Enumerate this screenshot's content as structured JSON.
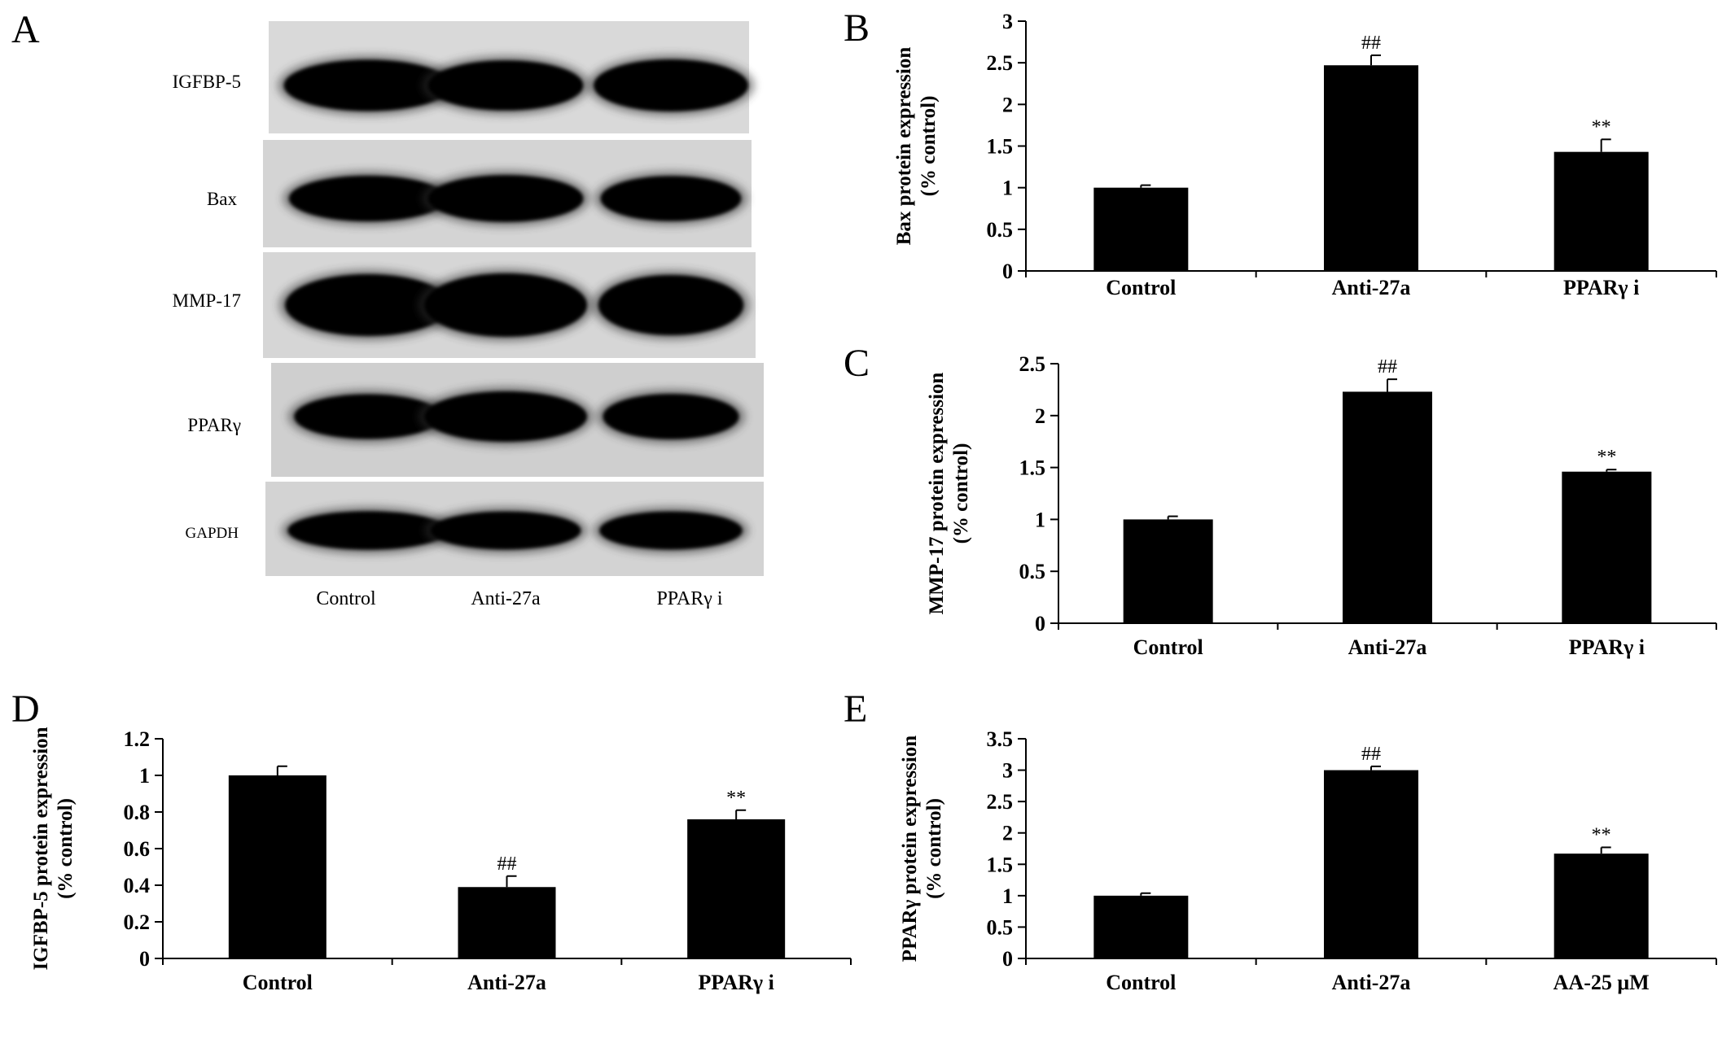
{
  "blot": {
    "panel_label": "A",
    "rows": [
      {
        "label": "IGFBP-5"
      },
      {
        "label": "Bax"
      },
      {
        "label": "MMP-17"
      },
      {
        "label": "PPARγ"
      },
      {
        "label": "GAPDH"
      }
    ],
    "lanes": [
      "Control",
      "Anti-27a",
      "PPARγ i"
    ],
    "band_intensity": [
      [
        0.95,
        0.85,
        1.0
      ],
      [
        0.75,
        0.85,
        0.7
      ],
      [
        0.9,
        1.0,
        0.8
      ],
      [
        0.55,
        1.0,
        0.6
      ],
      [
        0.8,
        0.75,
        0.75
      ]
    ]
  },
  "chart_data": [
    {
      "panel_label": "B",
      "type": "bar",
      "categories": [
        "Control",
        "Anti-27a",
        "PPARγ i"
      ],
      "values": [
        1.0,
        2.47,
        1.43
      ],
      "errors": [
        0.03,
        0.12,
        0.15
      ],
      "annotations": [
        "",
        "##",
        "**"
      ],
      "ylabel_lines": [
        "Bax protein expression",
        "(% control)"
      ],
      "ylim": [
        0,
        3
      ],
      "yticks": [
        0,
        0.5,
        1,
        1.5,
        2,
        2.5,
        3
      ],
      "ytick_labels": [
        "0",
        "0.5",
        "1",
        "1.5",
        "2",
        "2.5",
        "3"
      ],
      "grid": false
    },
    {
      "panel_label": "C",
      "type": "bar",
      "categories": [
        "Control",
        "Anti-27a",
        "PPARγ i"
      ],
      "values": [
        1.0,
        2.23,
        1.46
      ],
      "errors": [
        0.03,
        0.12,
        0.02
      ],
      "annotations": [
        "",
        "##",
        "**"
      ],
      "ylabel_lines": [
        "MMP-17  protein expression",
        "(% control)"
      ],
      "ylim": [
        0,
        2.5
      ],
      "yticks": [
        0,
        0.5,
        1,
        1.5,
        2,
        2.5
      ],
      "ytick_labels": [
        "0",
        "0.5",
        "1",
        "1.5",
        "2",
        "2.5"
      ],
      "grid": false
    },
    {
      "panel_label": "D",
      "type": "bar",
      "categories": [
        "Control",
        "Anti-27a",
        "PPARγ i"
      ],
      "values": [
        1.0,
        0.39,
        0.76
      ],
      "errors": [
        0.05,
        0.06,
        0.05
      ],
      "annotations": [
        "",
        "##",
        "**"
      ],
      "ylabel_lines": [
        "IGFBP-5  protein expression",
        "(% control)"
      ],
      "ylim": [
        0,
        1.2
      ],
      "yticks": [
        0,
        0.2,
        0.4,
        0.6,
        0.8,
        1,
        1.2
      ],
      "ytick_labels": [
        "0",
        "0.2",
        "0.4",
        "0.6",
        "0.8",
        "1",
        "1.2"
      ],
      "grid": false
    },
    {
      "panel_label": "E",
      "type": "bar",
      "categories": [
        "Control",
        "Anti-27a",
        "AA-25  μM"
      ],
      "values": [
        1.0,
        3.0,
        1.67
      ],
      "errors": [
        0.04,
        0.06,
        0.1
      ],
      "annotations": [
        "",
        "##",
        "**"
      ],
      "ylabel_lines": [
        "PPARγ  protein expression",
        "(% control)"
      ],
      "ylim": [
        0,
        3.5
      ],
      "yticks": [
        0,
        0.5,
        1,
        1.5,
        2,
        2.5,
        3,
        3.5
      ],
      "ytick_labels": [
        "0",
        "0.5",
        "1",
        "1.5",
        "2",
        "2.5",
        "3",
        "3.5"
      ],
      "grid": false
    }
  ]
}
